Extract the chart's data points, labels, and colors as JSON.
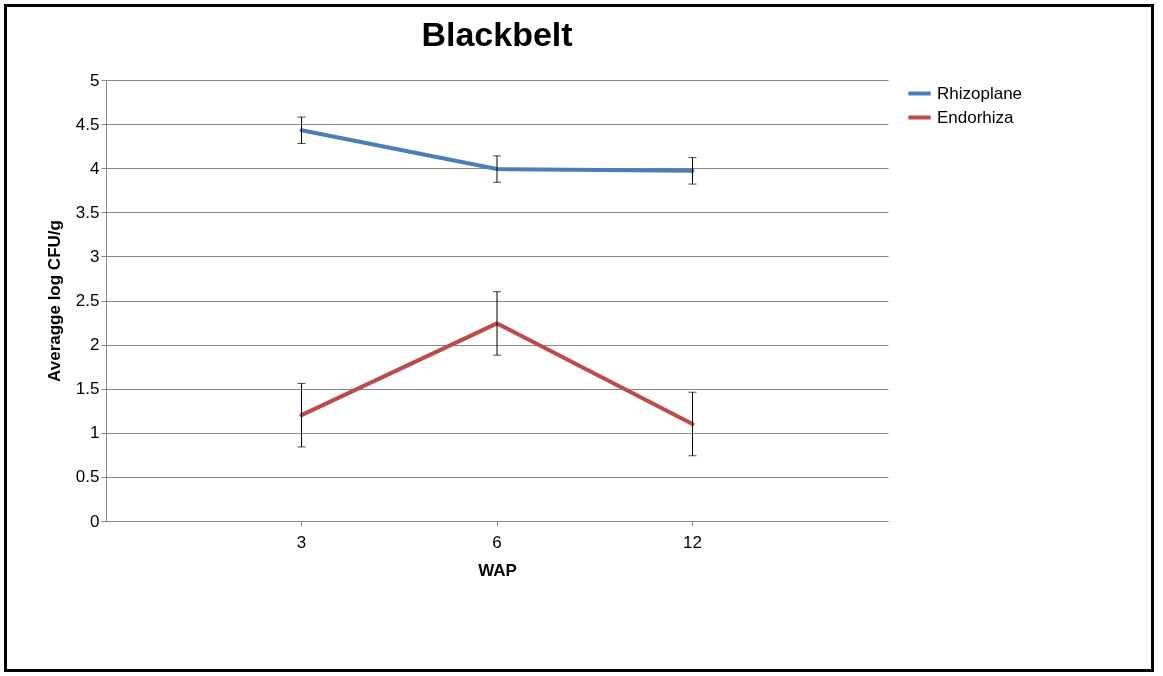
{
  "chart_data": {
    "type": "line",
    "title": "Blackbelt",
    "xlabel": "WAP",
    "ylabel": "Averagge log CFU/g",
    "categories": [
      "3",
      "6",
      "12"
    ],
    "series": [
      {
        "name": "Rhizoplane",
        "color": "#4a7ebb",
        "values": [
          4.43,
          3.99,
          3.97
        ],
        "errors": [
          0.15,
          0.15,
          0.15
        ]
      },
      {
        "name": "Endorhiza",
        "color": "#be4b48",
        "values": [
          1.2,
          2.24,
          1.1
        ],
        "errors": [
          0.36,
          0.36,
          0.36
        ]
      }
    ],
    "ylim": [
      0,
      5
    ],
    "yticks": [
      0,
      0.5,
      1,
      1.5,
      2,
      2.5,
      3,
      3.5,
      4,
      4.5,
      5
    ],
    "grid": "y",
    "legend": "right",
    "marker": "none",
    "line_style": "solid"
  }
}
